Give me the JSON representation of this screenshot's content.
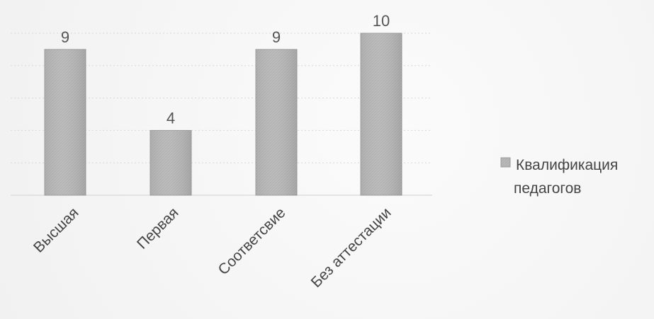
{
  "chart_data": {
    "type": "bar",
    "categories": [
      "Высшая",
      "Первая",
      "Соответсвие",
      "Без аттестации"
    ],
    "series": [
      {
        "name": "Квалификация педагогов",
        "values": [
          9,
          4,
          9,
          10
        ]
      }
    ],
    "ylim": [
      0,
      10
    ],
    "grid": true,
    "legend_position": "right",
    "colors": {
      "bar_fill": "#b8b8b8",
      "bar_stroke": "#9a9a9a",
      "grid": "#d8d8d8",
      "text": "#444444"
    }
  },
  "legend": {
    "line1": "Квалификация",
    "line2": "педагогов"
  }
}
